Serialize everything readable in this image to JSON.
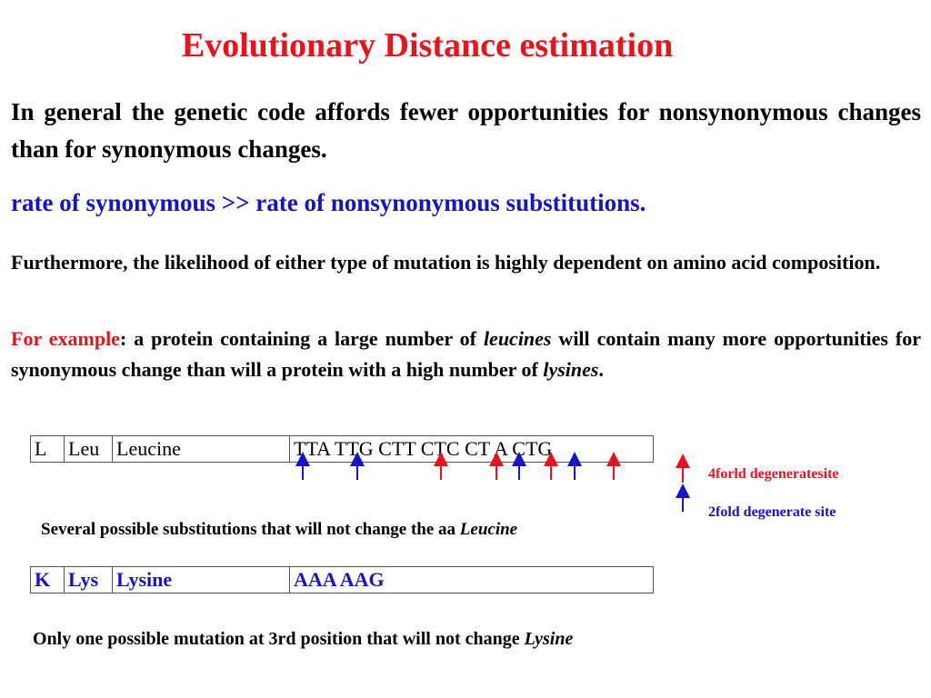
{
  "title": "Evolutionary Distance estimation",
  "paragraph1": "In general the genetic code affords fewer opportunities for nonsynonymous changes than for synonymous changes.",
  "paragraph2": "rate of synonymous >> rate of nonsynonymous substitutions.",
  "paragraph3": "Furthermore, the likelihood of either type of mutation is highly dependent on amino acid composition.",
  "paragraph4": {
    "lead": "For example",
    "colon": ":",
    "text_a": " a protein containing a large number of ",
    "italic_a": "leucines",
    "text_b": " will contain many more opportunities for synonymous change than will a protein with a high number of ",
    "italic_b": "lysines",
    "end": "."
  },
  "leucine_row": {
    "code": "L",
    "abbr": "Leu",
    "name": "Leucine",
    "codons": "TTA TTG CTT CTC CT A CTG"
  },
  "caption1": {
    "text": "Several possible substitutions that will not change the aa ",
    "italic": "Leucine"
  },
  "lysine_row": {
    "code": "K",
    "abbr": "Lys",
    "name": "Lysine",
    "codons": "AAA AAG"
  },
  "caption2": {
    "text": "Only one possible mutation at 3rd position that will not change ",
    "italic": "Lysine"
  },
  "legend": {
    "fourfold": "4forld degeneratesite",
    "twofold": "2fold degenerate site"
  },
  "colors": {
    "title": "#e8141b",
    "accent_blue": "#1414c8",
    "fourfold_arrow": "#e8141b",
    "twofold_arrow": "#1414c8"
  },
  "site_arrows": [
    "twofold",
    "twofold",
    "fourfold",
    "fourfold",
    "twofold",
    "fourfold",
    "twofold",
    "fourfold"
  ]
}
